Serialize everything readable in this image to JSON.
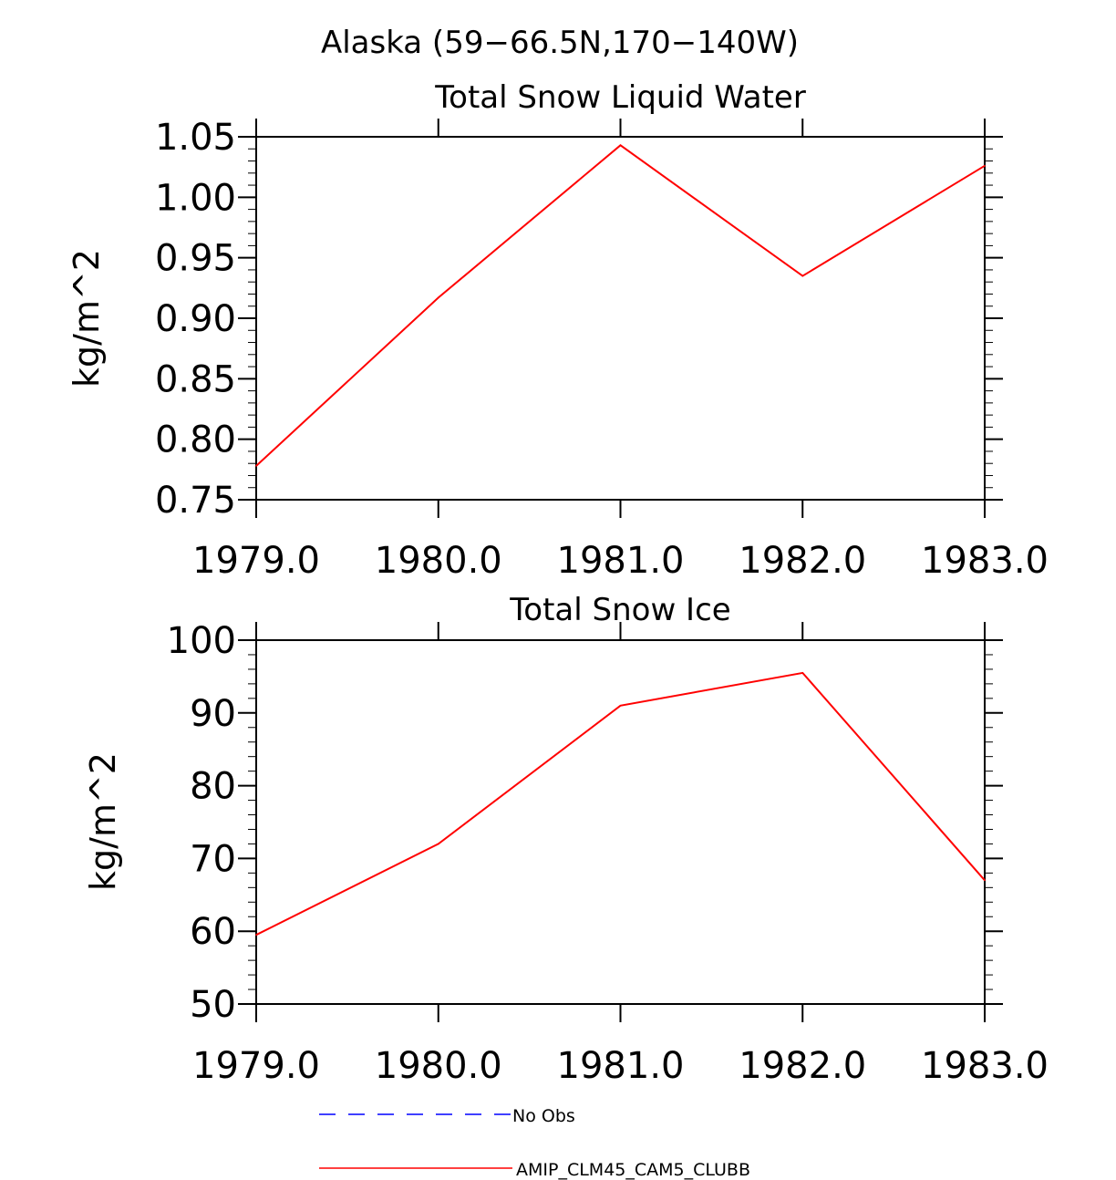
{
  "figure_title": "Alaska (59−66.5N,170−140W)",
  "chart_data": [
    {
      "type": "line",
      "title": "Total Snow Liquid Water",
      "xlabel": "",
      "ylabel": "kg/m^2",
      "x": [
        1979,
        1980,
        1981,
        1982,
        1983
      ],
      "xticks": [
        "1979.0",
        "1980.0",
        "1981.0",
        "1982.0",
        "1983.0"
      ],
      "yticks": [
        "0.75",
        "0.80",
        "0.85",
        "0.90",
        "0.95",
        "1.00",
        "1.05"
      ],
      "xlim": [
        1979,
        1983
      ],
      "ylim": [
        0.75,
        1.05
      ],
      "series": [
        {
          "name": "AMIP_CLM45_CAM5_CLUBB",
          "color": "#ff0000",
          "values": [
            0.778,
            0.917,
            1.043,
            0.935,
            1.026
          ]
        }
      ]
    },
    {
      "type": "line",
      "title": "Total Snow Ice",
      "xlabel": "",
      "ylabel": "kg/m^2",
      "x": [
        1979,
        1980,
        1981,
        1982,
        1983
      ],
      "xticks": [
        "1979.0",
        "1980.0",
        "1981.0",
        "1982.0",
        "1983.0"
      ],
      "yticks": [
        "50",
        "60",
        "70",
        "80",
        "90",
        "100"
      ],
      "xlim": [
        1979,
        1983
      ],
      "ylim": [
        50,
        100
      ],
      "series": [
        {
          "name": "AMIP_CLM45_CAM5_CLUBB",
          "color": "#ff0000",
          "values": [
            59.5,
            72.0,
            91.0,
            95.5,
            67.0
          ]
        }
      ]
    }
  ],
  "legend": [
    {
      "label": "No Obs",
      "color": "#0000ff",
      "style": "dashed"
    },
    {
      "label": "AMIP_CLM45_CAM5_CLUBB",
      "color": "#ff0000",
      "style": "solid"
    }
  ]
}
